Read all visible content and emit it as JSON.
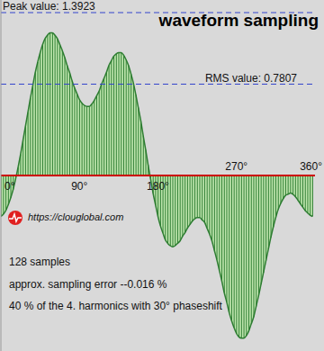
{
  "chart_data": {
    "type": "bar",
    "title": "waveform sampling",
    "color": "#2e7d32",
    "xlim": [
      0,
      360
    ],
    "xticks": [
      {
        "value": 0,
        "label": "0°"
      },
      {
        "value": 90,
        "label": "90°"
      },
      {
        "value": 180,
        "label": "180°"
      },
      {
        "value": 270,
        "label": "270°"
      },
      {
        "value": 360,
        "label": "360°"
      }
    ],
    "ylim": [
      -1.5,
      1.5
    ],
    "yticks": [],
    "tick_labels": "x",
    "x": [
      0,
      2.8125,
      5.625,
      8.4375,
      11.25,
      14.0625,
      16.875,
      19.6875,
      22.5,
      25.3125,
      28.125,
      30.9375,
      33.75,
      36.5625,
      39.375,
      42.1875,
      45,
      47.8125,
      50.625,
      53.4375,
      56.25,
      59.0625,
      61.875,
      64.6875,
      67.5,
      70.3125,
      73.125,
      75.9375,
      78.75,
      81.5625,
      84.375,
      87.1875,
      90,
      92.8125,
      95.625,
      98.4375,
      101.25,
      104.0625,
      106.875,
      109.6875,
      112.5,
      115.3125,
      118.125,
      120.9375,
      123.75,
      126.5625,
      129.375,
      132.1875,
      135,
      137.8125,
      140.625,
      143.4375,
      146.25,
      149.0625,
      151.875,
      154.6875,
      157.5,
      160.3125,
      163.125,
      165.9375,
      168.75,
      171.5625,
      174.375,
      177.1875,
      180,
      182.8125,
      185.625,
      188.4375,
      191.25,
      194.0625,
      196.875,
      199.6875,
      202.5,
      205.3125,
      208.125,
      210.9375,
      213.75,
      216.5625,
      219.375,
      222.1875,
      225,
      227.8125,
      230.625,
      233.4375,
      236.25,
      239.0625,
      241.875,
      244.6875,
      247.5,
      250.3125,
      253.125,
      255.9375,
      258.75,
      261.5625,
      264.375,
      267.1875,
      270,
      272.8125,
      275.625,
      278.4375,
      281.25,
      284.0625,
      286.875,
      289.6875,
      292.5,
      295.3125,
      298.125,
      300.9375,
      303.75,
      306.5625,
      309.375,
      312.1875,
      315,
      317.8125,
      320.625,
      323.4375,
      326.25,
      329.0625,
      331.875,
      334.6875,
      337.5,
      340.3125,
      343.125,
      345.9375,
      348.75,
      351.5625,
      354.375,
      357.1875
    ],
    "values": [
      -0.35,
      -0.33,
      -0.3,
      -0.25,
      -0.19,
      -0.12,
      -0.03,
      0.07,
      0.18,
      0.3,
      0.42,
      0.54,
      0.66,
      0.77,
      0.88,
      0.97,
      1.05,
      1.12,
      1.17,
      1.2,
      1.22,
      1.22,
      1.2,
      1.17,
      1.12,
      1.07,
      1.01,
      0.94,
      0.88,
      0.81,
      0.75,
      0.7,
      0.65,
      0.62,
      0.6,
      0.59,
      0.59,
      0.61,
      0.64,
      0.68,
      0.72,
      0.78,
      0.83,
      0.88,
      0.94,
      0.98,
      1.02,
      1.04,
      1.05,
      1.05,
      1.03,
      0.99,
      0.94,
      0.87,
      0.79,
      0.69,
      0.58,
      0.47,
      0.34,
      0.22,
      0.09,
      -0.03,
      -0.15,
      -0.25,
      -0.35,
      -0.43,
      -0.49,
      -0.55,
      -0.58,
      -0.6,
      -0.61,
      -0.6,
      -0.58,
      -0.56,
      -0.52,
      -0.49,
      -0.45,
      -0.42,
      -0.39,
      -0.37,
      -0.36,
      -0.36,
      -0.38,
      -0.4,
      -0.45,
      -0.5,
      -0.56,
      -0.64,
      -0.72,
      -0.81,
      -0.9,
      -1.0,
      -1.08,
      -1.17,
      -1.24,
      -1.3,
      -1.35,
      -1.38,
      -1.39,
      -1.39,
      -1.37,
      -1.33,
      -1.27,
      -1.21,
      -1.12,
      -1.03,
      -0.93,
      -0.83,
      -0.73,
      -0.63,
      -0.53,
      -0.44,
      -0.36,
      -0.29,
      -0.24,
      -0.2,
      -0.17,
      -0.16,
      -0.15,
      -0.16,
      -0.18,
      -0.21,
      -0.24,
      -0.27,
      -0.3,
      -0.32,
      -0.34,
      -0.35
    ],
    "reference_lines": [
      {
        "value": 1.3923,
        "label": "Peak value: 1.3923"
      },
      {
        "value": 0.7807,
        "label": "RMS value: 0.7807"
      }
    ],
    "source": "https://clouglobal.com",
    "annotations": [
      "128 samples",
      "approx. sampling error --0.016 %",
      "40 % of the 4. harmonics with 30° phaseshift"
    ]
  }
}
